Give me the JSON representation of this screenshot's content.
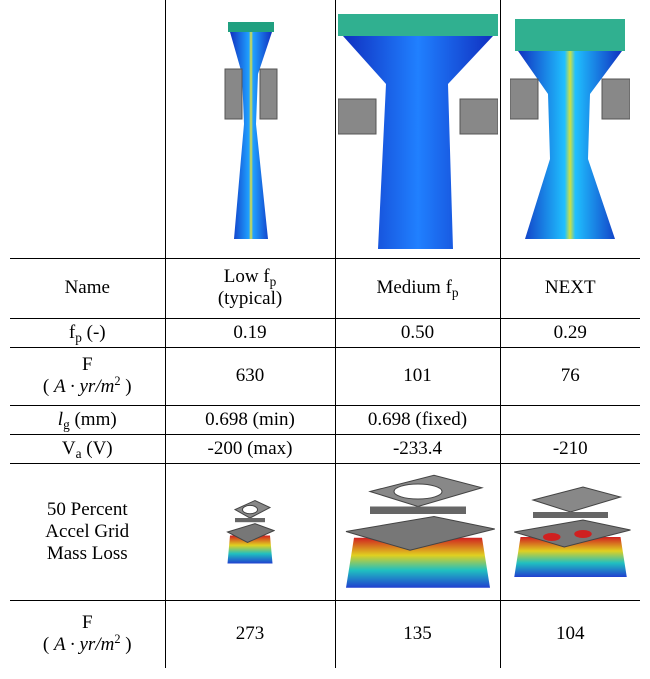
{
  "table": {
    "rows": [
      {
        "label": [
          [
            {
              "text": "Name"
            }
          ]
        ],
        "values": [
          [
            [
              {
                "text": "Low f"
              },
              {
                "text": "p",
                "style": "sub"
              }
            ],
            [
              {
                "text": "(typical)"
              }
            ]
          ],
          [
            [
              {
                "text": "Medium f"
              },
              {
                "text": "p",
                "style": "sub"
              }
            ]
          ],
          [
            [
              {
                "text": "NEXT"
              }
            ]
          ]
        ]
      },
      {
        "label": [
          [
            {
              "text": "f"
            },
            {
              "text": "p",
              "style": "sub"
            },
            {
              "text": " (-)"
            }
          ]
        ],
        "values": [
          [
            [
              {
                "text": "0.19"
              }
            ]
          ],
          [
            [
              {
                "text": "0.50"
              }
            ]
          ],
          [
            [
              {
                "text": "0.29"
              }
            ]
          ]
        ]
      },
      {
        "label": [
          [
            {
              "text": "F"
            }
          ],
          [
            {
              "text": "( "
            },
            {
              "text": "A · yr/m",
              "style": "italic"
            },
            {
              "text": "2",
              "style": "sup"
            },
            {
              "text": " )"
            }
          ]
        ],
        "values": [
          [
            [
              {
                "text": "630"
              }
            ]
          ],
          [
            [
              {
                "text": "101"
              }
            ]
          ],
          [
            [
              {
                "text": "76"
              }
            ]
          ]
        ]
      },
      {
        "label": [
          [
            {
              "text": "l",
              "style": "italic"
            },
            {
              "text": "g",
              "style": "sub"
            },
            {
              "text": " (mm)"
            }
          ]
        ],
        "values": [
          [
            [
              {
                "text": "0.698 (min)"
              }
            ]
          ],
          [
            [
              {
                "text": "0.698 (fixed)"
              }
            ]
          ]
        ]
      },
      {
        "label": [
          [
            {
              "text": "V"
            },
            {
              "text": "a",
              "style": "sub"
            },
            {
              "text": " (V)"
            }
          ]
        ],
        "values": [
          [
            [
              {
                "text": "-200 (max)"
              }
            ]
          ],
          [
            [
              {
                "text": "-233.4"
              }
            ]
          ],
          [
            [
              {
                "text": "-210"
              }
            ]
          ]
        ]
      },
      {
        "label": [
          [
            {
              "text": "50 Percent"
            }
          ],
          [
            {
              "text": "Accel Grid"
            }
          ],
          [
            {
              "text": "Mass Loss"
            }
          ]
        ],
        "values": []
      },
      {
        "label": [
          [
            {
              "text": "F"
            }
          ],
          [
            {
              "text": "( "
            },
            {
              "text": "A · yr/m",
              "style": "italic"
            },
            {
              "text": "2",
              "style": "sup"
            },
            {
              "text": " )"
            }
          ]
        ],
        "values": [
          [
            [
              {
                "text": "273"
              }
            ]
          ],
          [
            [
              {
                "text": "135"
              }
            ]
          ],
          [
            [
              {
                "text": "104"
              }
            ]
          ]
        ]
      }
    ]
  }
}
